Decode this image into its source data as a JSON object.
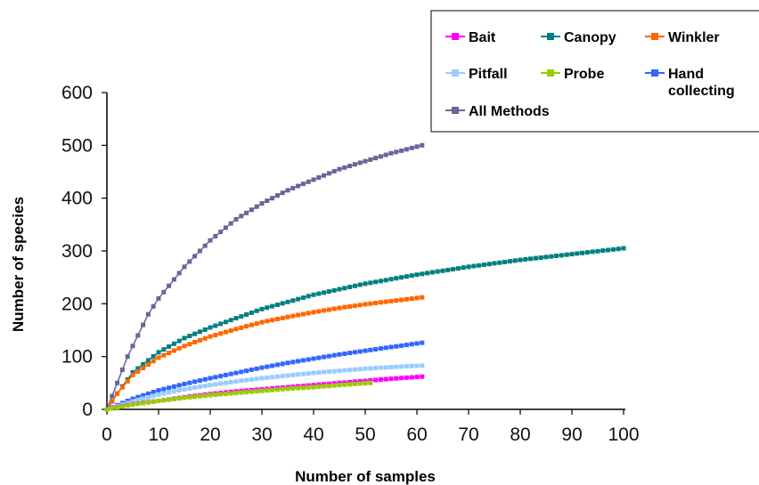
{
  "chart_data": {
    "type": "line",
    "title": "",
    "xlabel": "Number of samples",
    "ylabel": "Number of species",
    "xlim": [
      0,
      100
    ],
    "ylim": [
      0,
      600
    ],
    "xticks": [
      0,
      10,
      20,
      30,
      40,
      50,
      60,
      70,
      80,
      90,
      100
    ],
    "yticks": [
      0,
      100,
      200,
      300,
      400,
      500,
      600
    ],
    "grid": false,
    "legend_position": "top-right",
    "series": [
      {
        "name": "Bait",
        "color": "#ff00ff",
        "marker": "square",
        "x": [
          0,
          5,
          10,
          15,
          20,
          25,
          30,
          35,
          40,
          45,
          50,
          55,
          61
        ],
        "y": [
          0,
          10,
          16,
          23,
          29,
          34,
          38,
          42,
          46,
          50,
          54,
          58,
          62
        ]
      },
      {
        "name": "Canopy",
        "color": "#008080",
        "marker": "square",
        "x": [
          0,
          2,
          5,
          10,
          15,
          20,
          30,
          40,
          50,
          60,
          70,
          80,
          90,
          100
        ],
        "y": [
          0,
          30,
          70,
          108,
          135,
          155,
          190,
          217,
          238,
          255,
          270,
          283,
          294,
          305
        ]
      },
      {
        "name": "Winkler",
        "color": "#ff6600",
        "marker": "square",
        "x": [
          0,
          2,
          5,
          10,
          15,
          20,
          25,
          30,
          35,
          40,
          45,
          50,
          55,
          61
        ],
        "y": [
          0,
          30,
          65,
          98,
          120,
          138,
          152,
          165,
          175,
          184,
          192,
          199,
          205,
          212
        ]
      },
      {
        "name": "Pitfall",
        "color": "#99ccff",
        "marker": "square",
        "x": [
          0,
          5,
          10,
          15,
          20,
          25,
          30,
          35,
          40,
          45,
          50,
          55,
          61
        ],
        "y": [
          0,
          15,
          28,
          38,
          46,
          53,
          59,
          64,
          69,
          73,
          77,
          80,
          83
        ]
      },
      {
        "name": "Probe",
        "color": "#99cc00",
        "marker": "square",
        "x": [
          0,
          5,
          10,
          15,
          20,
          25,
          30,
          35,
          40,
          45,
          51
        ],
        "y": [
          0,
          9,
          16,
          22,
          27,
          31,
          35,
          39,
          42,
          46,
          50
        ]
      },
      {
        "name": "Hand collecting",
        "color": "#3366ff",
        "marker": "square",
        "x": [
          0,
          5,
          10,
          15,
          20,
          25,
          30,
          35,
          40,
          45,
          50,
          55,
          61
        ],
        "y": [
          0,
          20,
          36,
          48,
          59,
          69,
          79,
          88,
          96,
          104,
          111,
          118,
          126
        ]
      },
      {
        "name": "All Methods",
        "color": "#666699",
        "marker": "square",
        "x": [
          0,
          2,
          4,
          6,
          8,
          10,
          15,
          20,
          25,
          30,
          35,
          40,
          45,
          50,
          55,
          61
        ],
        "y": [
          0,
          50,
          100,
          140,
          180,
          210,
          270,
          320,
          360,
          390,
          415,
          435,
          455,
          470,
          485,
          500
        ]
      }
    ]
  },
  "legend": {
    "entries": [
      {
        "label": "Bait",
        "color": "#ff00ff"
      },
      {
        "label": "Canopy",
        "color": "#008080"
      },
      {
        "label": "Winkler",
        "color": "#ff6600"
      },
      {
        "label": "Pitfall",
        "color": "#99ccff"
      },
      {
        "label": "Probe",
        "color": "#99cc00"
      },
      {
        "label": "Hand",
        "label2": "collecting",
        "color": "#3366ff"
      },
      {
        "label": "All Methods",
        "color": "#666699"
      }
    ]
  }
}
